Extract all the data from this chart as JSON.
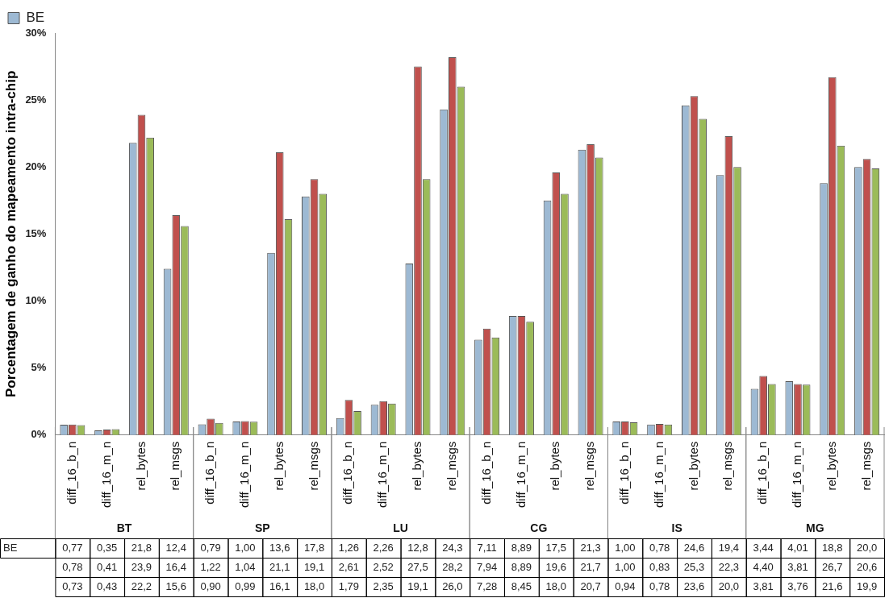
{
  "chart_data": {
    "type": "bar",
    "ylabel": "Porcentagem de ganho do mapeamento intra-chip",
    "categories": [
      "diff_16_b_n",
      "diff_16_m_n",
      "rel_bytes",
      "rel_msgs",
      "diff_16_b_n",
      "diff_16_m_n",
      "rel_bytes",
      "rel_msgs",
      "diff_16_b_n",
      "diff_16_m_n",
      "rel_bytes",
      "rel_msgs",
      "diff_16_b_n",
      "diff_16_m_n",
      "rel_bytes",
      "rel_msgs",
      "diff_16_b_n",
      "diff_16_m_n",
      "rel_bytes",
      "rel_msgs",
      "diff_16_b_n",
      "diff_16_m_n",
      "rel_bytes",
      "rel_msgs"
    ],
    "annotations": [
      "BT",
      "SP",
      "LU",
      "CG",
      "IS",
      "MG"
    ],
    "series": [
      {
        "name": "BE",
        "color": "#9db9d3",
        "values": [
          0.77,
          0.35,
          21.8,
          12.4,
          0.79,
          1.0,
          13.6,
          17.8,
          1.26,
          2.26,
          12.8,
          24.3,
          7.11,
          8.89,
          17.5,
          21.3,
          1.0,
          0.78,
          24.6,
          19.4,
          3.44,
          4.01,
          18.8,
          20.0
        ],
        "value_labels": [
          "0,77",
          "0,35",
          "21,8",
          "12,4",
          "0,79",
          "1,00",
          "13,6",
          "17,8",
          "1,26",
          "2,26",
          "12,8",
          "24,3",
          "7,11",
          "8,89",
          "17,5",
          "21,3",
          "1,00",
          "0,78",
          "24,6",
          "19,4",
          "3,44",
          "4,01",
          "18,8",
          "20,0"
        ]
      },
      {
        "color": "#c0504d",
        "values": [
          0.78,
          0.41,
          23.9,
          16.4,
          1.22,
          1.04,
          21.1,
          19.1,
          2.61,
          2.52,
          27.5,
          28.2,
          7.94,
          8.89,
          19.6,
          21.7,
          1.0,
          0.83,
          25.3,
          22.3,
          4.4,
          3.81,
          26.7,
          20.6
        ],
        "value_labels": [
          "0,78",
          "0,41",
          "23,9",
          "16,4",
          "1,22",
          "1,04",
          "21,1",
          "19,1",
          "2,61",
          "2,52",
          "27,5",
          "28,2",
          "7,94",
          "8,89",
          "19,6",
          "21,7",
          "1,00",
          "0,83",
          "25,3",
          "22,3",
          "4,40",
          "3,81",
          "26,7",
          "20,6"
        ]
      },
      {
        "color": "#9bbb59",
        "values": [
          0.73,
          0.43,
          22.2,
          15.6,
          0.9,
          0.99,
          16.1,
          18.0,
          1.79,
          2.35,
          19.1,
          26.0,
          7.28,
          8.45,
          18.0,
          20.7,
          0.94,
          0.78,
          23.6,
          20.0,
          3.81,
          3.76,
          21.6,
          19.9
        ],
        "value_labels": [
          "0,73",
          "0,43",
          "22,2",
          "15,6",
          "0,90",
          "0,99",
          "16,1",
          "18,0",
          "1,79",
          "2,35",
          "19,1",
          "26,0",
          "7,28",
          "8,45",
          "18,0",
          "20,7",
          "0,94",
          "0,78",
          "23,6",
          "20,0",
          "3,81",
          "3,76",
          "21,6",
          "19,9"
        ]
      }
    ],
    "ylim": [
      0,
      30
    ],
    "yticks": [
      {
        "value": 0,
        "label": "0%"
      },
      {
        "value": 5,
        "label": "5%"
      },
      {
        "value": 10,
        "label": "10%"
      },
      {
        "value": 15,
        "label": "15%"
      },
      {
        "value": 20,
        "label": "20%"
      },
      {
        "value": 25,
        "label": "25%"
      },
      {
        "value": 30,
        "label": "30%"
      }
    ],
    "grid": false,
    "legend": "top left"
  }
}
